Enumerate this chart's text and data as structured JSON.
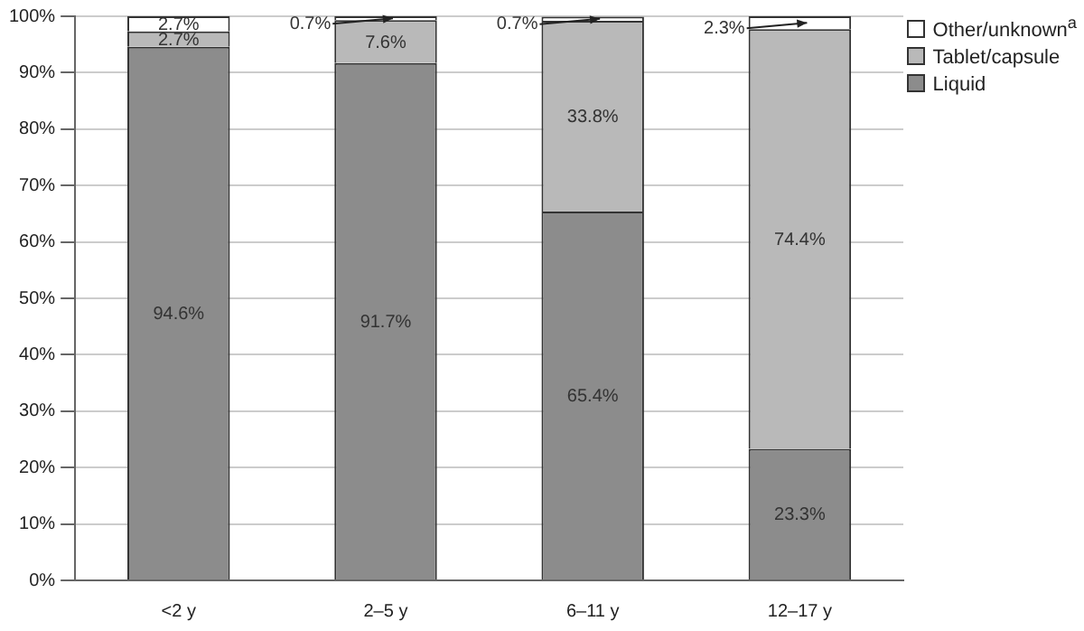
{
  "chart_data": {
    "type": "bar",
    "stacked": true,
    "categories": [
      "<2 y",
      "2–5 y",
      "6–11 y",
      "12–17 y"
    ],
    "series": [
      {
        "name": "Liquid",
        "color": "#8c8c8c",
        "values": [
          94.6,
          91.7,
          65.4,
          23.3
        ],
        "value_labels": [
          "94.6%",
          "91.7%",
          "65.4%",
          "23.3%"
        ]
      },
      {
        "name": "Tablet/capsule",
        "color": "#b9b9b9",
        "values": [
          2.7,
          7.6,
          33.8,
          74.4
        ],
        "value_labels": [
          "2.7%",
          "7.6%",
          "33.8%",
          "74.4%"
        ]
      },
      {
        "name": "Other/unknown$^{a}$",
        "color": "#ffffff",
        "values": [
          2.7,
          0.7,
          0.7,
          2.3
        ],
        "value_labels": [
          "2.7%",
          "0.7%",
          "0.7%",
          "2.3%"
        ]
      }
    ],
    "ylim": [
      0,
      100
    ],
    "yticks": [
      {
        "value": 0,
        "label": "0%"
      },
      {
        "value": 10,
        "label": "10%"
      },
      {
        "value": 20,
        "label": "20%"
      },
      {
        "value": 30,
        "label": "30%"
      },
      {
        "value": 40,
        "label": "40%"
      },
      {
        "value": 50,
        "label": "50%"
      },
      {
        "value": 60,
        "label": "60%"
      },
      {
        "value": 70,
        "label": "70%"
      },
      {
        "value": 80,
        "label": "80%"
      },
      {
        "value": 90,
        "label": "90%"
      },
      {
        "value": 100,
        "label": "100%"
      }
    ],
    "grid": "y",
    "legend": "top right"
  }
}
